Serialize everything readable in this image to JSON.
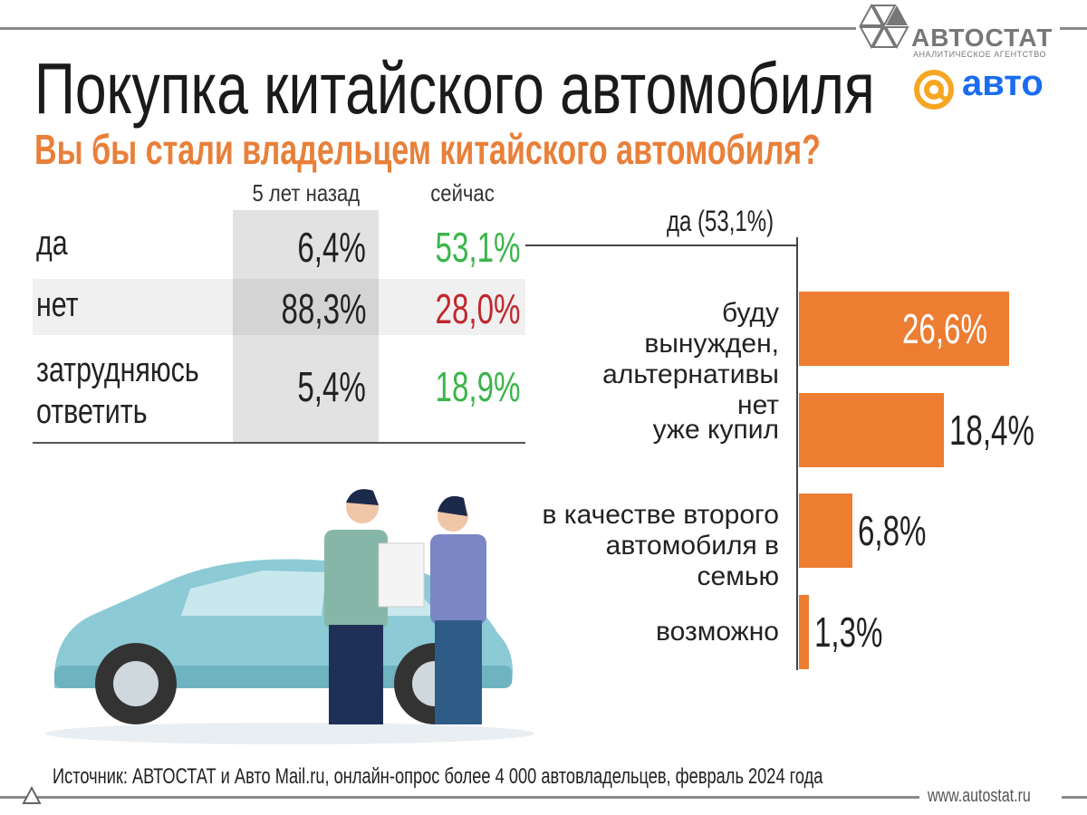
{
  "logos": {
    "autostat": "АВТОСТАТ",
    "autostat_sub": "АНАЛИТИЧЕСКОЕ АГЕНТСТВО",
    "mail_avto": "авто"
  },
  "title": "Покупка китайского автомобиля",
  "subtitle": "Вы бы стали владельцем китайского автомобиля?",
  "table": {
    "headers": [
      "5 лет назад",
      "сейчас"
    ],
    "rows": [
      {
        "label": "да",
        "past": "6,4%",
        "now": "53,1%",
        "now_color": "#3bb54a"
      },
      {
        "label": "нет",
        "past": "88,3%",
        "now": "28,0%",
        "now_color": "#c0272d"
      },
      {
        "label": "затрудняюсь ответить",
        "past": "5,4%",
        "now": "18,9%",
        "now_color": "#3bb54a"
      }
    ]
  },
  "chart_data": {
    "type": "bar",
    "orientation": "horizontal",
    "title": "да (53,1%)",
    "categories": [
      "буду вынужден, альтернативы нет",
      "уже купил",
      "в качестве второго автомобиля в семью",
      "возможно"
    ],
    "values": [
      26.6,
      18.4,
      6.8,
      1.3
    ],
    "labels": [
      "26,6%",
      "18,4%",
      "6,8%",
      "1,3%"
    ],
    "color": "#ed7d31"
  },
  "footer": {
    "source": "Источник: АВТОСТАТ и Авто Mail.ru, онлайн-опрос более 4 000 автовладельцев, февраль 2024 года",
    "site": "www.autostat.ru"
  }
}
